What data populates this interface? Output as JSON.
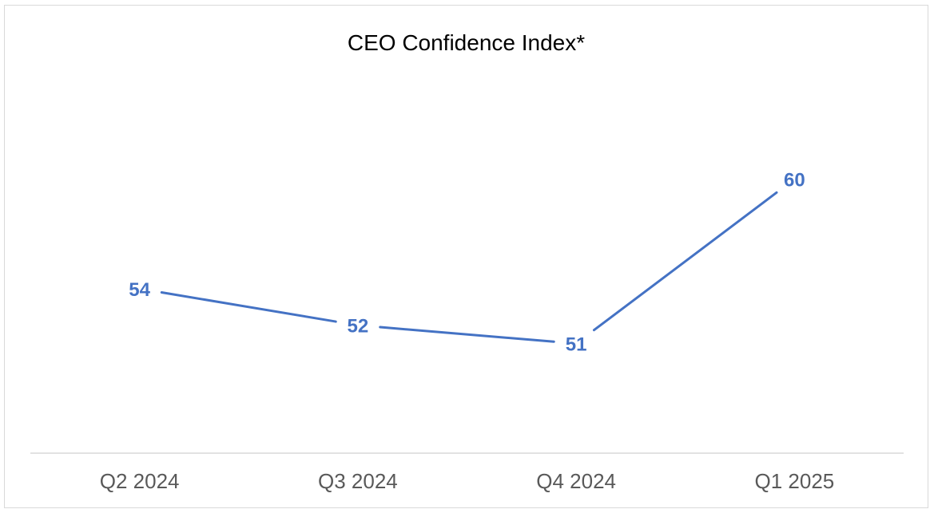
{
  "chart_data": {
    "type": "line",
    "title": "CEO Confidence Index*",
    "categories": [
      "Q2 2024",
      "Q3 2024",
      "Q4 2024",
      "Q1 2025"
    ],
    "series": [
      {
        "values": [
          54,
          52,
          51,
          60
        ],
        "color": "#4472c4"
      }
    ],
    "ylim": [
      45,
      65
    ],
    "grid": false,
    "legend": "none",
    "data_labels": true
  }
}
